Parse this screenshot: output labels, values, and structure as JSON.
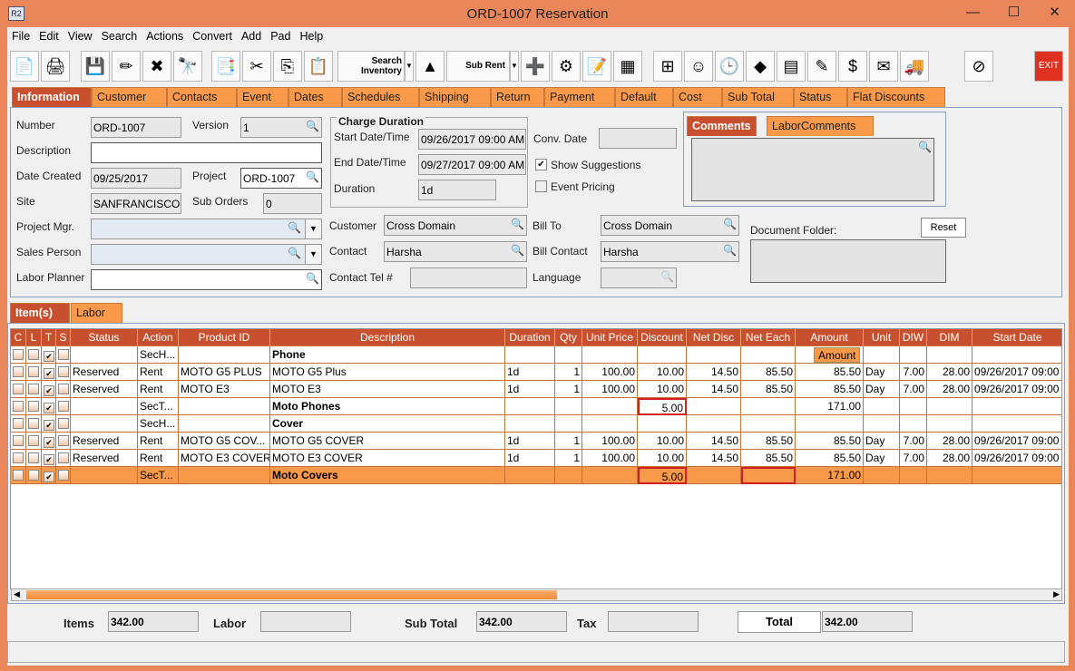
{
  "window": {
    "title": "ORD-1007 Reservation",
    "app_icon": "R2"
  },
  "menu": [
    "File",
    "Edit",
    "View",
    "Search",
    "Actions",
    "Convert",
    "Add",
    "Pad",
    "Help"
  ],
  "toolbar": {
    "search_inventory": "Search Inventory",
    "sub_rent": "Sub Rent",
    "exit": "EXIT"
  },
  "tabs": [
    "Information",
    "Customer",
    "Contacts",
    "Event",
    "Dates",
    "Schedules",
    "Shipping",
    "Return",
    "Payment",
    "Default",
    "Cost",
    "Sub Total",
    "Status",
    "Flat Discounts"
  ],
  "info": {
    "number_label": "Number",
    "number": "ORD-1007",
    "version_label": "Version",
    "version": "1",
    "description_label": "Description",
    "description": "",
    "date_created_label": "Date Created",
    "date_created": "09/25/2017",
    "project_label": "Project",
    "project": "ORD-1007",
    "site_label": "Site",
    "site": "SANFRANCISCO",
    "sub_orders_label": "Sub Orders",
    "sub_orders": "0",
    "project_mgr_label": "Project Mgr.",
    "sales_person_label": "Sales Person",
    "labor_planner_label": "Labor Planner",
    "charge_duration_title": "Charge Duration",
    "start_label": "Start Date/Time",
    "start": "09/26/2017 09:00 AM",
    "end_label": "End Date/Time",
    "end": "09/27/2017 09:00 AM",
    "duration_label": "Duration",
    "duration": "1d",
    "conv_date_label": "Conv. Date",
    "show_suggestions": "Show Suggestions",
    "event_pricing": "Event Pricing",
    "customer_label": "Customer",
    "customer": "Cross Domain",
    "contact_label": "Contact",
    "contact": "Harsha",
    "contact_tel_label": "Contact Tel #",
    "bill_to_label": "Bill To",
    "bill_to": "Cross Domain",
    "bill_contact_label": "Bill Contact",
    "bill_contact": "Harsha",
    "language_label": "Language",
    "comments_tabs": [
      "Comments",
      "LaborComments"
    ],
    "document_folder_label": "Document Folder:",
    "reset": "Reset"
  },
  "item_tabs": [
    "Item(s)",
    "Labor"
  ],
  "grid": {
    "columns": [
      "C",
      "L",
      "T",
      "S",
      "Status",
      "Action",
      "Product ID",
      "Description",
      "Duration",
      "Qty",
      "Unit Price",
      "Discount",
      "Net Disc",
      "Net Each",
      "Amount",
      "Unit",
      "DIW",
      "DIM",
      "Start Date"
    ],
    "rows": [
      [
        "",
        "",
        "✔",
        "",
        "",
        "SecH...",
        "",
        "Phone",
        "",
        "",
        "",
        "",
        "",
        "",
        "",
        "",
        "",
        "",
        ""
      ],
      [
        "",
        "",
        "✔",
        "",
        "Reserved",
        "Rent",
        "MOTO G5 PLUS",
        "MOTO G5 Plus",
        "1d",
        "1",
        "100.00",
        "10.00",
        "14.50",
        "85.50",
        "85.50",
        "Day",
        "7.00",
        "28.00",
        "09/26/2017 09:00"
      ],
      [
        "",
        "",
        "✔",
        "",
        "Reserved",
        "Rent",
        "MOTO E3",
        "MOTO E3",
        "1d",
        "1",
        "100.00",
        "10.00",
        "14.50",
        "85.50",
        "85.50",
        "Day",
        "7.00",
        "28.00",
        "09/26/2017 09:00"
      ],
      [
        "",
        "",
        "✔",
        "",
        "",
        "SecT...",
        "",
        "Moto Phones",
        "",
        "",
        "",
        "5.00",
        "",
        "",
        "171.00",
        "",
        "",
        "",
        ""
      ],
      [
        "",
        "",
        "✔",
        "",
        "",
        "SecH...",
        "",
        "Cover",
        "",
        "",
        "",
        "",
        "",
        "",
        "",
        "",
        "",
        "",
        ""
      ],
      [
        "",
        "",
        "✔",
        "",
        "Reserved",
        "Rent",
        "MOTO G5 COV...",
        "MOTO G5 COVER",
        "1d",
        "1",
        "100.00",
        "10.00",
        "14.50",
        "85.50",
        "85.50",
        "Day",
        "7.00",
        "28.00",
        "09/26/2017 09:00"
      ],
      [
        "",
        "",
        "✔",
        "",
        "Reserved",
        "Rent",
        "MOTO E3 COVER",
        "MOTO E3 COVER",
        "1d",
        "1",
        "100.00",
        "10.00",
        "14.50",
        "85.50",
        "85.50",
        "Day",
        "7.00",
        "28.00",
        "09/26/2017 09:00"
      ],
      [
        "",
        "",
        "✔",
        "",
        "",
        "SecT...",
        "",
        "Moto Covers",
        "",
        "",
        "",
        "5.00",
        "",
        "",
        "171.00",
        "",
        "",
        "",
        ""
      ]
    ],
    "tooltip": "Amount"
  },
  "totals": {
    "items_label": "Items",
    "items": "342.00",
    "labor_label": "Labor",
    "labor": "",
    "sub_total_label": "Sub Total",
    "sub_total": "342.00",
    "tax_label": "Tax",
    "tax": "",
    "total_label": "Total",
    "total": "342.00"
  },
  "colors": {
    "accent": "#c8502e",
    "tab": "#f99a4a",
    "selected_row": "#f99a4a"
  }
}
